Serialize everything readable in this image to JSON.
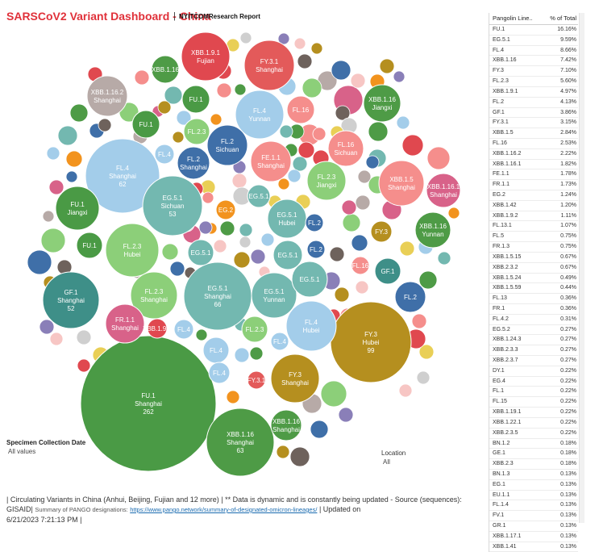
{
  "header": {
    "title": "SARSCoV2 Variant Dashboard - China",
    "separator": "|",
    "subtitle": "NYITCOMResearch Report"
  },
  "filters": {
    "specimen_label": "Specimen Collection Date",
    "specimen_value": "All values",
    "location_label": "Location",
    "location_value": "All"
  },
  "footer": {
    "line1": "| Circulating Variants in China  (Anhui, Beijing, Fujian and 12 more)  |  ** Data is dynamic and is constantly being updated - Source (sequences): GISAID|",
    "summary_label": "Summary of PANGO designations:",
    "link": "https://www.pango.network/summary-of-designated-omicron-lineages/",
    "line2_suffix": "| Updated on",
    "line3": "6/21/2023 7:21:13 PM |"
  },
  "table": {
    "col1": "Pangolin Line..",
    "col2": "% of Total",
    "rows": [
      [
        "FU.1",
        "16.16%"
      ],
      [
        "EG.5.1",
        "9.59%"
      ],
      [
        "FL.4",
        "8.66%"
      ],
      [
        "XBB.1.16",
        "7.42%"
      ],
      [
        "FY.3",
        "7.10%"
      ],
      [
        "FL.2.3",
        "5.60%"
      ],
      [
        "XBB.1.9.1",
        "4.97%"
      ],
      [
        "FL.2",
        "4.13%"
      ],
      [
        "GF.1",
        "3.86%"
      ],
      [
        "FY.3.1",
        "3.15%"
      ],
      [
        "XBB.1.5",
        "2.84%"
      ],
      [
        "FL.16",
        "2.53%"
      ],
      [
        "XBB.1.16.2",
        "2.22%"
      ],
      [
        "XBB.1.16.1",
        "1.82%"
      ],
      [
        "FE.1.1",
        "1.78%"
      ],
      [
        "FR.1.1",
        "1.73%"
      ],
      [
        "EG.2",
        "1.24%"
      ],
      [
        "XBB.1.42",
        "1.20%"
      ],
      [
        "XBB.1.9.2",
        "1.11%"
      ],
      [
        "FL.13.1",
        "1.07%"
      ],
      [
        "FL.5",
        "0.75%"
      ],
      [
        "FR.1.3",
        "0.75%"
      ],
      [
        "XBB.1.5.15",
        "0.67%"
      ],
      [
        "XBB.2.3.2",
        "0.67%"
      ],
      [
        "XBB.1.5.24",
        "0.49%"
      ],
      [
        "XBB.1.5.59",
        "0.44%"
      ],
      [
        "FL.13",
        "0.36%"
      ],
      [
        "FR.1",
        "0.36%"
      ],
      [
        "FL.4.2",
        "0.31%"
      ],
      [
        "EG.5.2",
        "0.27%"
      ],
      [
        "XBB.1.24.3",
        "0.27%"
      ],
      [
        "XBB.2.3.3",
        "0.27%"
      ],
      [
        "XBB.2.3.7",
        "0.27%"
      ],
      [
        "DY.1",
        "0.22%"
      ],
      [
        "EG.4",
        "0.22%"
      ],
      [
        "FL.1",
        "0.22%"
      ],
      [
        "FL.15",
        "0.22%"
      ],
      [
        "XBB.1.19.1",
        "0.22%"
      ],
      [
        "XBB.1.22.1",
        "0.22%"
      ],
      [
        "XBB.2.3.5",
        "0.22%"
      ],
      [
        "BN.1.2",
        "0.18%"
      ],
      [
        "GE.1",
        "0.18%"
      ],
      [
        "XBB.2.3",
        "0.18%"
      ],
      [
        "BN.1.3",
        "0.13%"
      ],
      [
        "EG.1",
        "0.13%"
      ],
      [
        "EU.1.1",
        "0.13%"
      ],
      [
        "FL.1.4",
        "0.13%"
      ],
      [
        "FV.1",
        "0.13%"
      ],
      [
        "GR.1",
        "0.13%"
      ],
      [
        "XBB.1.17.1",
        "0.13%"
      ],
      [
        "XBB.1.41",
        "0.13%"
      ]
    ]
  },
  "chart_data": {
    "type": "bubble",
    "title": "SARSCoV2 Variant Dashboard - China",
    "size_measure": "count",
    "color_by": "lineage",
    "colors": {
      "FU.1": "#4a9a45",
      "EG.5.1": "#73b8b0",
      "FL.4": "#a3cdea",
      "XBB.1.16": "#4e9b46",
      "FY.3": "#b58f1f",
      "FL.2.3": "#8ccf79",
      "XBB.1.9.1": "#e0484f",
      "FL.2": "#3f6fa8",
      "GF.1": "#3e8f88",
      "FY.3.1": "#e35a5a",
      "XBB.1.5": "#f58e8c",
      "FL.16": "#f58e8c",
      "XBB.1.16.2": "#b7aaa7",
      "XBB.1.16.1": "#d86289",
      "FE.1.1": "#f58e8c",
      "FR.1.1": "#d86289",
      "EG.2": "#f2931e"
    },
    "labeled_bubbles": [
      {
        "lineage": "FU.1",
        "location": "Shanghai",
        "value": 262
      },
      {
        "lineage": "EG.5.1",
        "location": "Shanghai",
        "value": 66
      },
      {
        "lineage": "XBB.1.16",
        "location": "Shanghai",
        "value": 63
      },
      {
        "lineage": "FL.4",
        "location": "Shanghai",
        "value": 62
      },
      {
        "lineage": "FY.3",
        "location": "Hubei",
        "value": 99
      },
      {
        "lineage": "EG.5.1",
        "location": "Sichuan",
        "value": 53
      },
      {
        "lineage": "GF.1",
        "location": "Shanghai",
        "value": 52
      },
      {
        "lineage": "FL.4",
        "location": "Hubei"
      },
      {
        "lineage": "XBB.1.9.1",
        "location": "Fujian"
      },
      {
        "lineage": "FY.3.1",
        "location": "Shanghai"
      },
      {
        "lineage": "FL.4",
        "location": "Yunnan"
      },
      {
        "lineage": "XBB.1.16.2",
        "location": "Shanghai"
      },
      {
        "lineage": "XBB.1.16",
        "location": "Jiangxi"
      },
      {
        "lineage": "FL.2",
        "location": "Sichuan"
      },
      {
        "lineage": "FL.2",
        "location": "Shanghai"
      },
      {
        "lineage": "FE.1.1",
        "location": "Shanghai"
      },
      {
        "lineage": "FL.16",
        "location": "Sichuan"
      },
      {
        "lineage": "FL.2.3",
        "location": "Jiangxi"
      },
      {
        "lineage": "XBB.1.5",
        "location": "Shanghai"
      },
      {
        "lineage": "XBB.1.16.1",
        "location": "Shanghai"
      },
      {
        "lineage": "FU.1",
        "location": "Jiangxi"
      },
      {
        "lineage": "FL.2.3",
        "location": "Hubei"
      },
      {
        "lineage": "EG.5.1",
        "location": "Hubei"
      },
      {
        "lineage": "XBB.1.16",
        "location": "Yunnan"
      },
      {
        "lineage": "FL.2.3",
        "location": "Shanghai"
      },
      {
        "lineage": "EG.5.1",
        "location": "Yunnan"
      },
      {
        "lineage": "FR.1.1",
        "location": "Shanghai"
      },
      {
        "lineage": "FY.3",
        "location": "Shanghai"
      },
      {
        "lineage": "XBB.1.16",
        "location": "Shanghai"
      },
      {
        "lineage": "XBB.1.16"
      },
      {
        "lineage": "FU.1"
      },
      {
        "lineage": "FL.4"
      },
      {
        "lineage": "FL.16"
      },
      {
        "lineage": "FL.2.3"
      },
      {
        "lineage": "FU.1"
      },
      {
        "lineage": "EG.5.1"
      },
      {
        "lineage": "EG.2"
      },
      {
        "lineage": "EG.5.1"
      },
      {
        "lineage": "FL.2"
      },
      {
        "lineage": "FY.3"
      },
      {
        "lineage": "FU.1"
      },
      {
        "lineage": "EG.5.1"
      },
      {
        "lineage": "FL.2"
      },
      {
        "lineage": "EG.5.1"
      },
      {
        "lineage": "FL.16"
      },
      {
        "lineage": "GF.1"
      },
      {
        "lineage": "FL.2"
      },
      {
        "lineage": "XBB.1.9.1"
      },
      {
        "lineage": "FL.4"
      },
      {
        "lineage": "FL.4"
      },
      {
        "lineage": "FL.2.3"
      },
      {
        "lineage": "FL.4"
      },
      {
        "lineage": "FL.4"
      },
      {
        "lineage": "FY.3.1"
      }
    ]
  }
}
